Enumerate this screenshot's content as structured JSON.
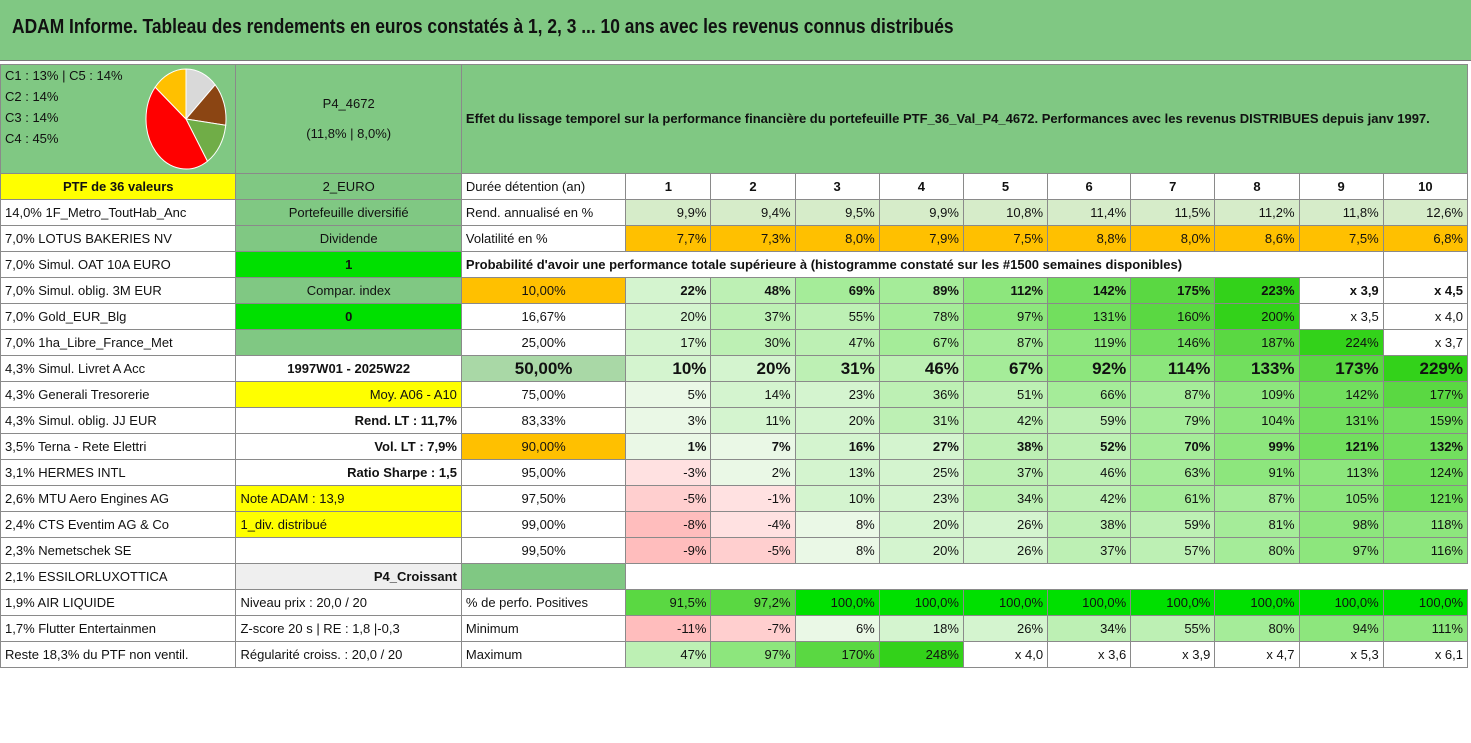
{
  "title": "ADAM Informe. Tableau des rendements en euros constatés à 1, 2, 3 ... 10 ans avec les revenus connus distribués",
  "composition": {
    "lines": [
      "C1 : 13% | C5 : 14%",
      "C2 : 14%",
      "C3 : 14%",
      "C4 : 45%"
    ],
    "pie": [
      {
        "label": "C1",
        "pct": 13,
        "color": "#d9d9d9"
      },
      {
        "label": "C2",
        "pct": 14,
        "color": "#8b4513"
      },
      {
        "label": "C3",
        "pct": 14,
        "color": "#70ad47"
      },
      {
        "label": "C4",
        "pct": 45,
        "color": "#ff0000"
      },
      {
        "label": "C5",
        "pct": 14,
        "color": "#ffc000"
      }
    ]
  },
  "portfolio": {
    "name": "P4_4672",
    "perf": "(11,8% | 8,0%)"
  },
  "description": "Effet du lissage temporel sur la performance financière du portefeuille PTF_36_Val_P4_4672. Performances avec les revenus DISTRIBUES depuis janv 1997.",
  "header": {
    "ptf": "PTF de 36 valeurs",
    "currency": "2_EURO",
    "duration": "Durée détention (an)",
    "years": [
      "1",
      "2",
      "3",
      "4",
      "5",
      "6",
      "7",
      "8",
      "9",
      "10"
    ]
  },
  "holdings": [
    "14,0% 1F_Metro_ToutHab_Anc",
    "7,0% LOTUS BAKERIES NV",
    "7,0% Simul. OAT 10A EURO",
    "7,0% Simul. oblig. 3M EUR",
    "7,0% Gold_EUR_Blg",
    "7,0% 1ha_Libre_France_Met",
    "4,3% Simul. Livret A Acc",
    "4,3% Generali Tresorerie",
    "4,3% Simul. oblig. JJ EUR",
    "3,5% Terna - Rete Elettri",
    "3,1% HERMES INTL",
    "2,6% MTU Aero Engines AG",
    "2,4% CTS Eventim AG & Co",
    "2,3% Nemetschek SE",
    "2,1% ESSILORLUXOTTICA",
    "1,9% AIR LIQUIDE",
    "1,7% Flutter Entertainmen",
    "Reste 18,3% du PTF non ventil."
  ],
  "info": [
    "Portefeuille diversifié",
    "Dividende",
    "1",
    "Compar. index",
    "0",
    "",
    "1997W01 - 2025W22",
    "Moy. A06 - A10",
    "Rend. LT : 11,7%",
    "Vol. LT : 7,9%",
    "Ratio Sharpe : 1,5",
    "Note ADAM : 13,9",
    "1_div. distribué",
    "",
    "P4_Croissant",
    "Niveau prix : 20,0 / 20",
    "Z-score 20 s | RE : 1,8 |-0,3",
    "Régularité croiss. : 20,0 / 20"
  ],
  "rendement": {
    "label": "Rend. annualisé en %",
    "values": [
      "9,9%",
      "9,4%",
      "9,5%",
      "9,9%",
      "10,8%",
      "11,4%",
      "11,5%",
      "11,2%",
      "11,8%",
      "12,6%"
    ]
  },
  "volatilite": {
    "label": "Volatilité en %",
    "values": [
      "7,7%",
      "7,3%",
      "8,0%",
      "7,9%",
      "7,5%",
      "8,8%",
      "8,0%",
      "8,6%",
      "7,5%",
      "6,8%"
    ]
  },
  "probability_caption": "Probabilité d'avoir une performance totale supérieure à (histogramme constaté sur les #1500 semaines disponibles)",
  "probability": [
    {
      "level": "10,00%",
      "values": [
        "22%",
        "48%",
        "69%",
        "89%",
        "112%",
        "142%",
        "175%",
        "223%",
        "x 3,9",
        "x 4,5"
      ]
    },
    {
      "level": "16,67%",
      "values": [
        "20%",
        "37%",
        "55%",
        "78%",
        "97%",
        "131%",
        "160%",
        "200%",
        "x 3,5",
        "x 4,0"
      ]
    },
    {
      "level": "25,00%",
      "values": [
        "17%",
        "30%",
        "47%",
        "67%",
        "87%",
        "119%",
        "146%",
        "187%",
        "224%",
        "x 3,7"
      ]
    },
    {
      "level": "50,00%",
      "values": [
        "10%",
        "20%",
        "31%",
        "46%",
        "67%",
        "92%",
        "114%",
        "133%",
        "173%",
        "229%"
      ]
    },
    {
      "level": "75,00%",
      "values": [
        "5%",
        "14%",
        "23%",
        "36%",
        "51%",
        "66%",
        "87%",
        "109%",
        "142%",
        "177%"
      ]
    },
    {
      "level": "83,33%",
      "values": [
        "3%",
        "11%",
        "20%",
        "31%",
        "42%",
        "59%",
        "79%",
        "104%",
        "131%",
        "159%"
      ]
    },
    {
      "level": "90,00%",
      "values": [
        "1%",
        "7%",
        "16%",
        "27%",
        "38%",
        "52%",
        "70%",
        "99%",
        "121%",
        "132%"
      ]
    },
    {
      "level": "95,00%",
      "values": [
        "-3%",
        "2%",
        "13%",
        "25%",
        "37%",
        "46%",
        "63%",
        "91%",
        "113%",
        "124%"
      ]
    },
    {
      "level": "97,50%",
      "values": [
        "-5%",
        "-1%",
        "10%",
        "23%",
        "34%",
        "42%",
        "61%",
        "87%",
        "105%",
        "121%"
      ]
    },
    {
      "level": "99,00%",
      "values": [
        "-8%",
        "-4%",
        "8%",
        "20%",
        "26%",
        "38%",
        "59%",
        "81%",
        "98%",
        "118%"
      ]
    },
    {
      "level": "99,50%",
      "values": [
        "-9%",
        "-5%",
        "8%",
        "20%",
        "26%",
        "37%",
        "57%",
        "80%",
        "97%",
        "116%"
      ]
    }
  ],
  "positives": {
    "label": "% de perfo. Positives",
    "values": [
      "91,5%",
      "97,2%",
      "100,0%",
      "100,0%",
      "100,0%",
      "100,0%",
      "100,0%",
      "100,0%",
      "100,0%",
      "100,0%"
    ]
  },
  "minimum": {
    "label": "Minimum",
    "values": [
      "-11%",
      "-7%",
      "6%",
      "18%",
      "26%",
      "34%",
      "55%",
      "80%",
      "94%",
      "111%"
    ]
  },
  "maximum": {
    "label": "Maximum",
    "values": [
      "47%",
      "97%",
      "170%",
      "248%",
      "x 4,0",
      "x 3,6",
      "x 3,9",
      "x 4,7",
      "x 5,3",
      "x 6,1"
    ]
  }
}
